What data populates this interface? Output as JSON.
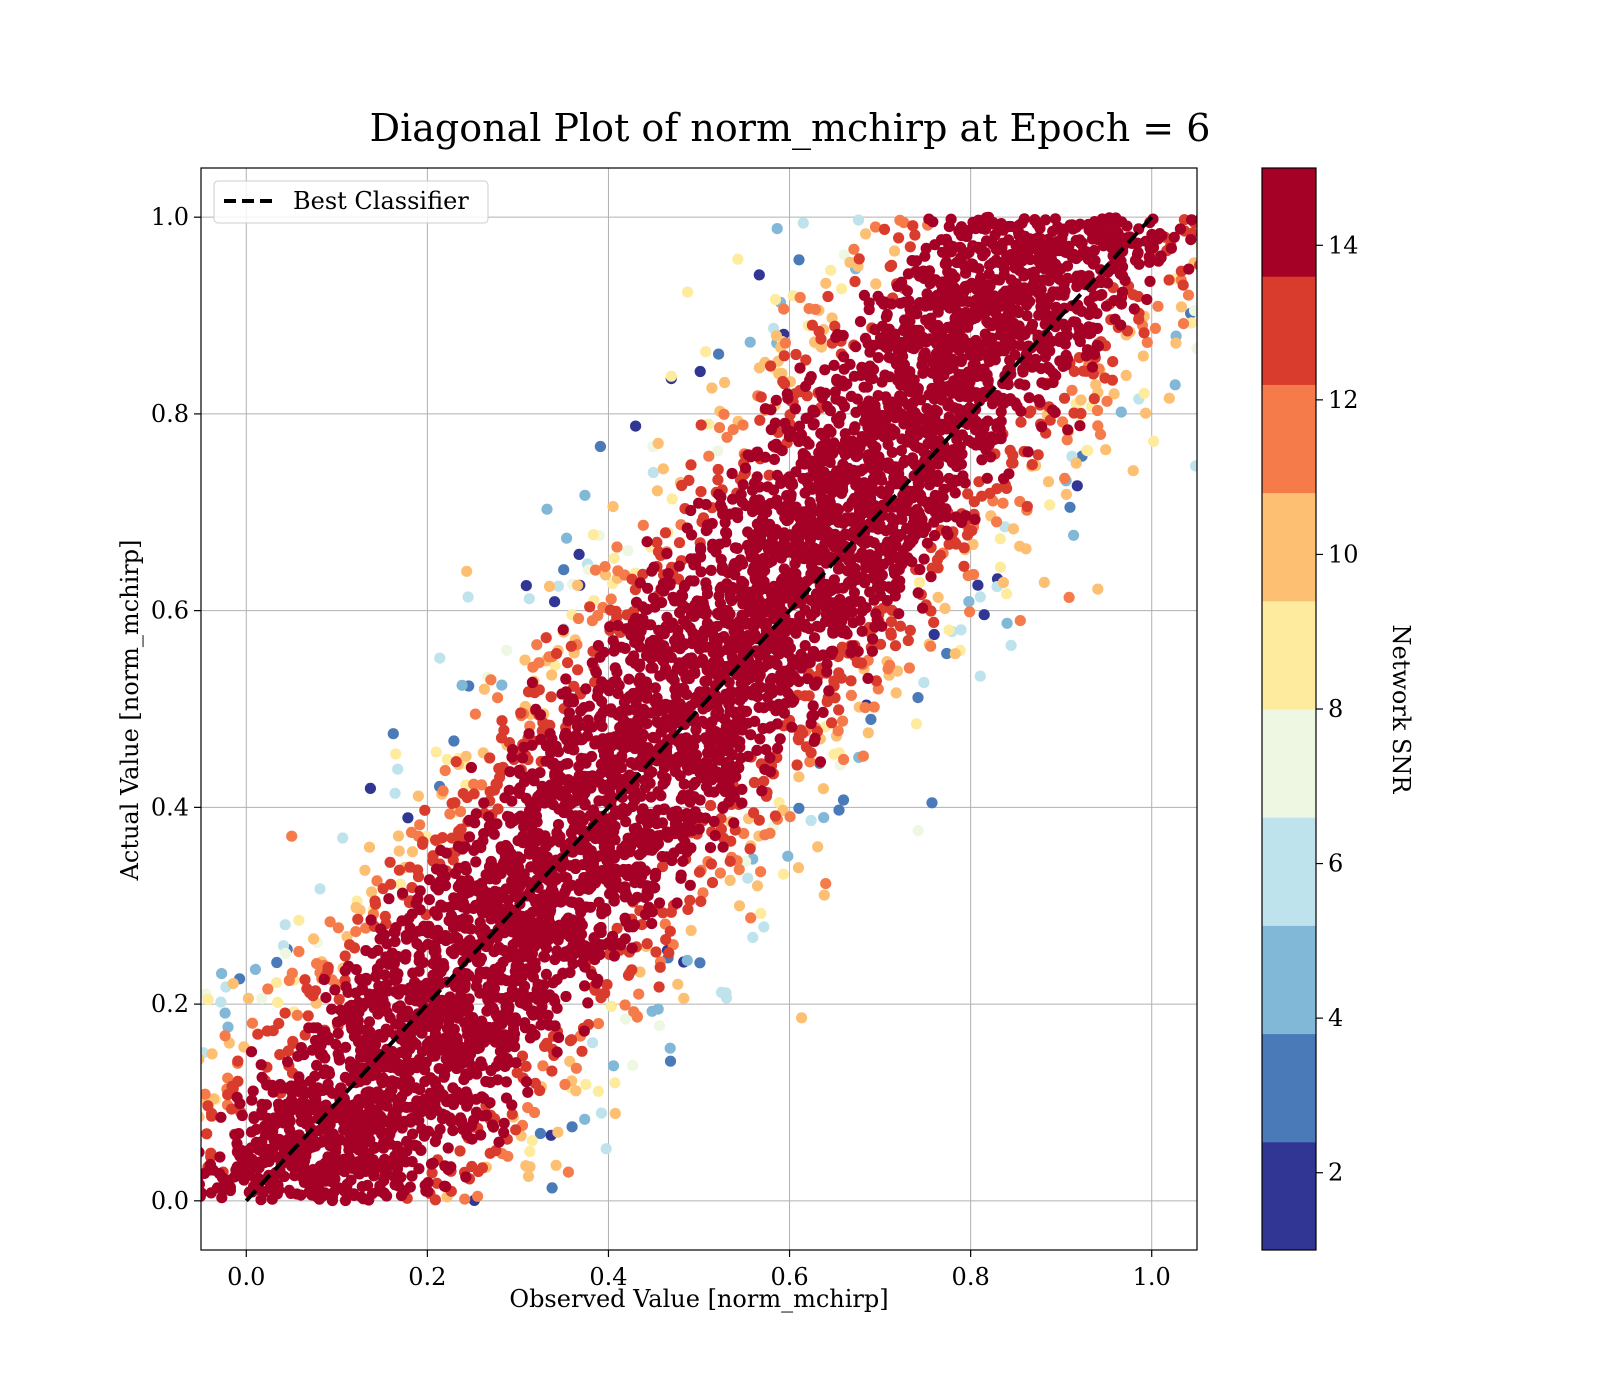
{
  "chart_data": {
    "type": "scatter",
    "title": "Diagonal Plot of norm_mchirp at Epoch = 6",
    "xlabel": "Observed Value [norm_mchirp]",
    "ylabel": "Actual Value [norm_mchirp]",
    "xlim": [
      -0.05,
      1.05
    ],
    "ylim": [
      -0.05,
      1.05
    ],
    "xticks": [
      "0.0",
      "0.2",
      "0.4",
      "0.6",
      "0.8",
      "1.0"
    ],
    "yticks": [
      "0.0",
      "0.2",
      "0.4",
      "0.6",
      "0.8",
      "1.0"
    ],
    "grid": true,
    "legend": {
      "position": "upper-left",
      "entries": [
        {
          "label": "Best Classifier",
          "style": "black dashed line"
        }
      ]
    },
    "reference_line": {
      "name": "Best Classifier",
      "x": [
        0.0,
        1.0
      ],
      "y": [
        0.0,
        1.0
      ],
      "color": "#000000",
      "dashed": true
    },
    "point_cloud": {
      "description_note": "",
      "approx_count": 6000,
      "band_center_slope": 1.18,
      "band_center_offset": -0.07,
      "band_halfwidth_x": 0.19,
      "y_range": [
        0.0,
        1.0
      ],
      "color_by": "Network SNR"
    },
    "colorbar": {
      "label": "Network SNR",
      "range": [
        1,
        15
      ],
      "ticks": [
        "2",
        "4",
        "6",
        "8",
        "10",
        "12",
        "14"
      ],
      "tick_values": [
        2,
        4,
        6,
        8,
        10,
        12,
        14
      ],
      "colormap": "RdYlBu_r",
      "levels": [
        {
          "from": 1,
          "to": 2.4,
          "color": "#313695"
        },
        {
          "from": 2.4,
          "to": 3.8,
          "color": "#4a7ab7"
        },
        {
          "from": 3.8,
          "to": 5.2,
          "color": "#82b8d7"
        },
        {
          "from": 5.2,
          "to": 6.6,
          "color": "#bee3ec"
        },
        {
          "from": 6.6,
          "to": 8.0,
          "color": "#edf7e1"
        },
        {
          "from": 8.0,
          "to": 9.4,
          "color": "#feeb9d"
        },
        {
          "from": 9.4,
          "to": 10.8,
          "color": "#fdbf71"
        },
        {
          "from": 10.8,
          "to": 12.2,
          "color": "#f57c4a"
        },
        {
          "from": 12.2,
          "to": 13.6,
          "color": "#d93b2c"
        },
        {
          "from": 13.6,
          "to": 15,
          "color": "#a50026"
        }
      ]
    }
  }
}
